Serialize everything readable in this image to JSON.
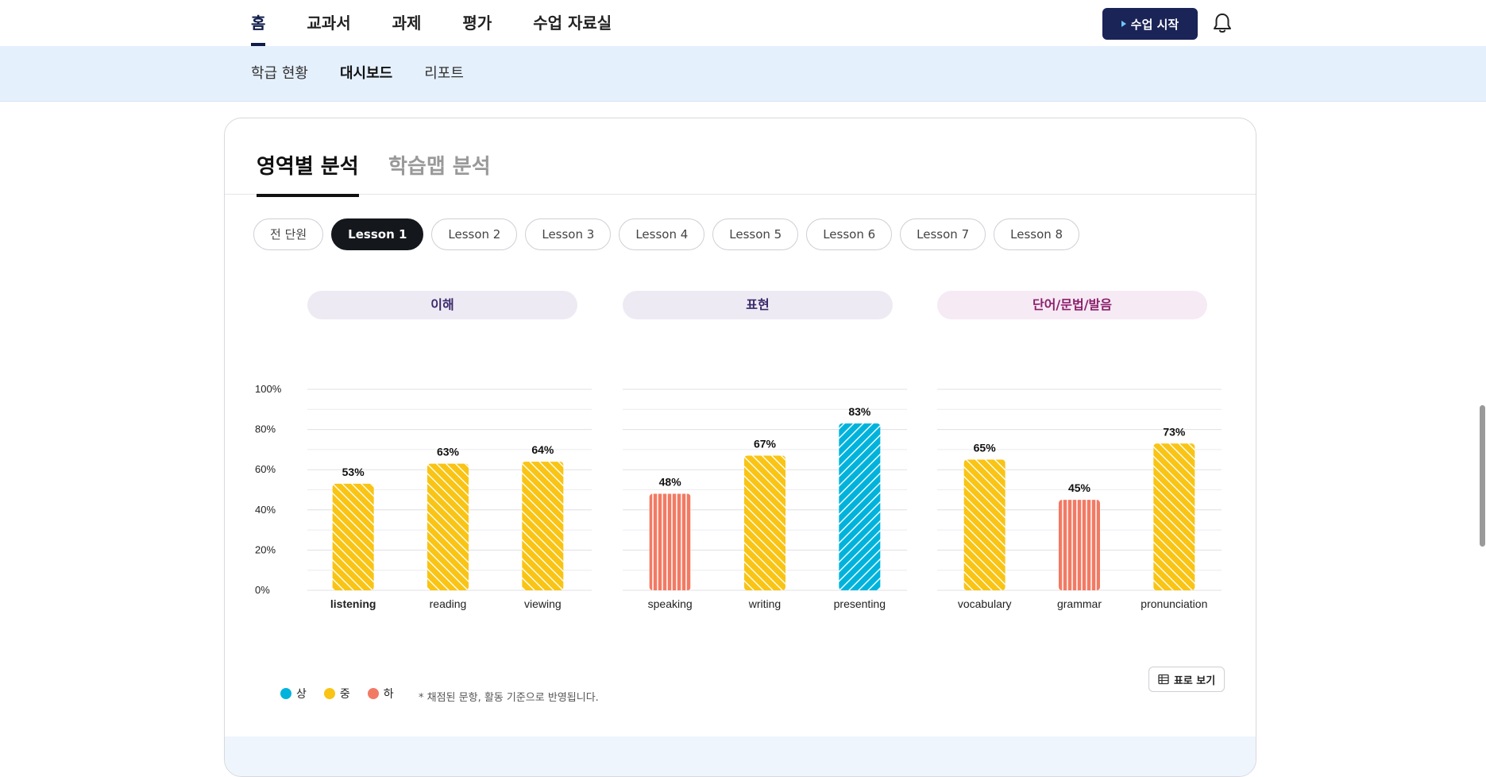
{
  "top_nav": {
    "items": [
      "홈",
      "교과서",
      "과제",
      "평가",
      "수업 자료실"
    ],
    "active_index": 0,
    "start_button": "수업 시작"
  },
  "sub_nav": {
    "items": [
      "학급 현황",
      "대시보드",
      "리포트"
    ],
    "active_index": 1
  },
  "card": {
    "tabs": [
      "영역별 분석",
      "학습맵 분석"
    ],
    "active_tab": 0,
    "lessons": [
      "전 단원",
      "Lesson 1",
      "Lesson 2",
      "Lesson 3",
      "Lesson 4",
      "Lesson 5",
      "Lesson 6",
      "Lesson 7",
      "Lesson 8"
    ],
    "active_lesson": 1,
    "table_button": "표로 보기",
    "note": "* 채점된 문항, 활동 기준으로 반영됩니다."
  },
  "colors": {
    "high": "#00b3dc",
    "mid": "#f9c414",
    "low": "#f27a64",
    "brand": "#1a2457"
  },
  "chart_data": {
    "type": "bar",
    "y_ticks": [
      "100%",
      "80%",
      "60%",
      "40%",
      "20%",
      "0%"
    ],
    "ylim": [
      0,
      100
    ],
    "legend": [
      {
        "label": "상",
        "level": "high"
      },
      {
        "label": "중",
        "level": "mid"
      },
      {
        "label": "하",
        "level": "low"
      }
    ],
    "groups": [
      {
        "title": "이해",
        "title_color": "#3a2a6b",
        "title_bg": "#eeeaf4",
        "categories": [
          "listening",
          "reading",
          "viewing"
        ],
        "values": [
          53,
          63,
          64
        ],
        "levels": [
          "mid",
          "mid",
          "mid"
        ],
        "labels": [
          "53%",
          "63%",
          "64%"
        ],
        "bold_index": 0
      },
      {
        "title": "표현",
        "title_color": "#3a2a6b",
        "title_bg": "#eeeaf4",
        "categories": [
          "speaking",
          "writing",
          "presenting"
        ],
        "values": [
          48,
          67,
          83
        ],
        "levels": [
          "low",
          "mid",
          "high"
        ],
        "labels": [
          "48%",
          "67%",
          "83%"
        ],
        "bold_index": -1
      },
      {
        "title": "단어/문법/발음",
        "title_color": "#8a1f6b",
        "title_bg": "#f6eaf4",
        "categories": [
          "vocabulary",
          "grammar",
          "pronunciation"
        ],
        "values": [
          65,
          45,
          73
        ],
        "levels": [
          "mid",
          "low",
          "mid"
        ],
        "labels": [
          "65%",
          "45%",
          "73%"
        ],
        "bold_index": -1
      }
    ]
  }
}
